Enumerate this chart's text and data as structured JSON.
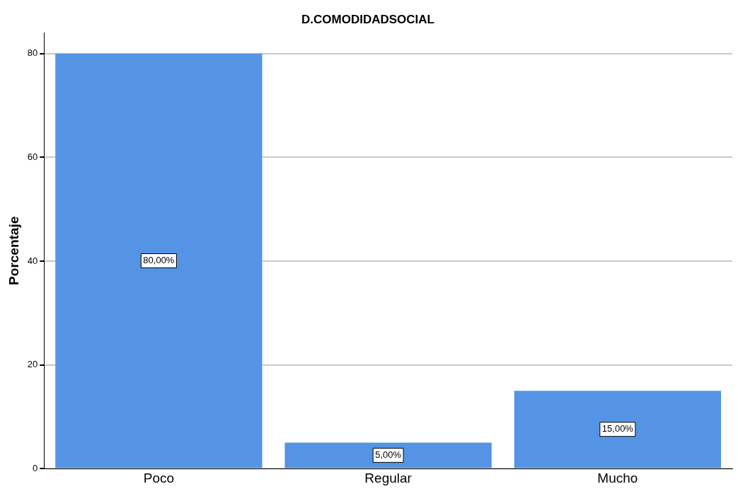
{
  "chart_data": {
    "type": "bar",
    "title": "D.COMODIDADSOCIAL",
    "ylabel": "Porcentaje",
    "categories": [
      "Poco",
      "Regular",
      "Mucho"
    ],
    "values": [
      80,
      5,
      15
    ],
    "value_labels": [
      "80,00%",
      "5,00%",
      "15,00%"
    ],
    "color": "#5594e5",
    "ylim": [
      0,
      84
    ],
    "yticks": [
      0,
      20,
      40,
      60,
      80
    ],
    "grid": "y",
    "legend": false
  }
}
